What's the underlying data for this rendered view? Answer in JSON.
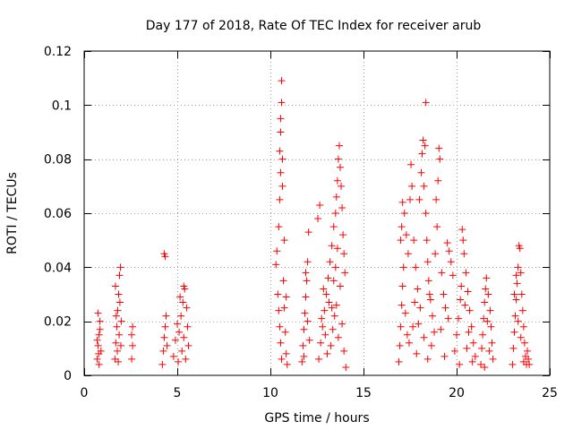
{
  "chart_data": {
    "type": "scatter",
    "title": "Day 177 of 2018, Rate Of TEC Index for receiver arub",
    "xlabel": "GPS time / hours",
    "ylabel": "ROTI / TECUs",
    "xlim": [
      0,
      25
    ],
    "ylim": [
      0,
      0.12
    ],
    "xticks": [
      0,
      5,
      10,
      15,
      20,
      25
    ],
    "xtick_labels": [
      "0",
      "5",
      "10",
      "15",
      "20",
      "25"
    ],
    "yticks": [
      0,
      0.02,
      0.04,
      0.06,
      0.08,
      0.1,
      0.12
    ],
    "ytick_labels": [
      "0",
      "0.02",
      "0.04",
      "0.06",
      "0.08",
      "0.1",
      "0.12"
    ],
    "grid": true,
    "marker": "+",
    "color": "#ff0000",
    "series": [
      {
        "name": "ROTI",
        "points": [
          [
            0.7,
            0.006
          ],
          [
            0.75,
            0.011
          ],
          [
            0.8,
            0.015
          ],
          [
            0.85,
            0.02
          ],
          [
            0.75,
            0.023
          ],
          [
            0.9,
            0.009
          ],
          [
            0.8,
            0.004
          ],
          [
            0.7,
            0.013
          ],
          [
            0.85,
            0.017
          ],
          [
            0.78,
            0.008
          ],
          [
            1.65,
            0.006
          ],
          [
            1.7,
            0.012
          ],
          [
            1.75,
            0.018
          ],
          [
            1.8,
            0.024
          ],
          [
            1.85,
            0.03
          ],
          [
            1.9,
            0.037
          ],
          [
            1.95,
            0.04
          ],
          [
            1.72,
            0.022
          ],
          [
            1.88,
            0.015
          ],
          [
            1.78,
            0.009
          ],
          [
            1.92,
            0.027
          ],
          [
            2.0,
            0.02
          ],
          [
            1.68,
            0.033
          ],
          [
            1.83,
            0.005
          ],
          [
            1.97,
            0.011
          ],
          [
            2.55,
            0.006
          ],
          [
            2.6,
            0.011
          ],
          [
            2.55,
            0.015
          ],
          [
            2.6,
            0.018
          ],
          [
            4.2,
            0.004
          ],
          [
            4.25,
            0.009
          ],
          [
            4.3,
            0.014
          ],
          [
            4.35,
            0.018
          ],
          [
            4.4,
            0.022
          ],
          [
            4.3,
            0.045
          ],
          [
            4.35,
            0.044
          ],
          [
            4.45,
            0.011
          ],
          [
            4.8,
            0.007
          ],
          [
            4.9,
            0.013
          ],
          [
            5.0,
            0.019
          ],
          [
            5.1,
            0.016
          ],
          [
            5.2,
            0.022
          ],
          [
            5.3,
            0.027
          ],
          [
            5.35,
            0.033
          ],
          [
            5.4,
            0.032
          ],
          [
            5.5,
            0.025
          ],
          [
            5.55,
            0.018
          ],
          [
            5.6,
            0.011
          ],
          [
            5.45,
            0.006
          ],
          [
            5.25,
            0.009
          ],
          [
            5.15,
            0.029
          ],
          [
            5.05,
            0.005
          ],
          [
            5.35,
            0.014
          ],
          [
            10.3,
            0.041
          ],
          [
            10.35,
            0.046
          ],
          [
            10.4,
            0.03
          ],
          [
            10.45,
            0.024
          ],
          [
            10.5,
            0.018
          ],
          [
            10.55,
            0.012
          ],
          [
            10.6,
            0.006
          ],
          [
            10.45,
            0.055
          ],
          [
            10.5,
            0.065
          ],
          [
            10.55,
            0.075
          ],
          [
            10.5,
            0.083
          ],
          [
            10.55,
            0.09
          ],
          [
            10.55,
            0.095
          ],
          [
            10.6,
            0.101
          ],
          [
            10.6,
            0.109
          ],
          [
            10.65,
            0.08
          ],
          [
            10.65,
            0.07
          ],
          [
            10.7,
            0.035
          ],
          [
            10.75,
            0.025
          ],
          [
            10.8,
            0.016
          ],
          [
            10.85,
            0.008
          ],
          [
            10.9,
            0.004
          ],
          [
            10.75,
            0.05
          ],
          [
            10.85,
            0.029
          ],
          [
            11.7,
            0.005
          ],
          [
            11.75,
            0.011
          ],
          [
            11.8,
            0.017
          ],
          [
            11.85,
            0.023
          ],
          [
            11.9,
            0.029
          ],
          [
            11.95,
            0.035
          ],
          [
            12.0,
            0.042
          ],
          [
            12.05,
            0.053
          ],
          [
            11.9,
            0.038
          ],
          [
            12.0,
            0.02
          ],
          [
            12.1,
            0.013
          ],
          [
            11.8,
            0.007
          ],
          [
            12.6,
            0.006
          ],
          [
            12.7,
            0.012
          ],
          [
            12.8,
            0.018
          ],
          [
            12.9,
            0.024
          ],
          [
            13.0,
            0.03
          ],
          [
            13.1,
            0.036
          ],
          [
            13.2,
            0.042
          ],
          [
            13.3,
            0.048
          ],
          [
            13.4,
            0.055
          ],
          [
            13.5,
            0.06
          ],
          [
            13.55,
            0.066
          ],
          [
            13.6,
            0.072
          ],
          [
            13.65,
            0.08
          ],
          [
            13.7,
            0.085
          ],
          [
            13.75,
            0.077
          ],
          [
            13.8,
            0.07
          ],
          [
            13.85,
            0.062
          ],
          [
            13.9,
            0.052
          ],
          [
            13.95,
            0.045
          ],
          [
            14.0,
            0.038
          ],
          [
            13.45,
            0.022
          ],
          [
            13.35,
            0.017
          ],
          [
            13.25,
            0.011
          ],
          [
            13.15,
            0.027
          ],
          [
            13.05,
            0.008
          ],
          [
            12.95,
            0.015
          ],
          [
            12.85,
            0.032
          ],
          [
            12.75,
            0.021
          ],
          [
            12.65,
            0.063
          ],
          [
            12.55,
            0.058
          ],
          [
            13.55,
            0.026
          ],
          [
            13.65,
            0.014
          ],
          [
            13.75,
            0.033
          ],
          [
            13.85,
            0.019
          ],
          [
            13.95,
            0.009
          ],
          [
            14.05,
            0.003
          ],
          [
            13.5,
            0.04
          ],
          [
            13.6,
            0.047
          ],
          [
            13.4,
            0.035
          ],
          [
            13.3,
            0.025
          ],
          [
            16.9,
            0.005
          ],
          [
            16.95,
            0.011
          ],
          [
            17.0,
            0.018
          ],
          [
            17.05,
            0.026
          ],
          [
            17.1,
            0.033
          ],
          [
            17.15,
            0.04
          ],
          [
            17.0,
            0.05
          ],
          [
            17.05,
            0.055
          ],
          [
            17.1,
            0.064
          ],
          [
            17.2,
            0.06
          ],
          [
            17.3,
            0.052
          ],
          [
            17.4,
            0.045
          ],
          [
            17.5,
            0.065
          ],
          [
            17.55,
            0.078
          ],
          [
            17.6,
            0.07
          ],
          [
            17.7,
            0.05
          ],
          [
            17.8,
            0.04
          ],
          [
            17.9,
            0.032
          ],
          [
            18.0,
            0.065
          ],
          [
            18.1,
            0.075
          ],
          [
            18.15,
            0.082
          ],
          [
            18.2,
            0.087
          ],
          [
            18.3,
            0.085
          ],
          [
            18.25,
            0.07
          ],
          [
            18.35,
            0.06
          ],
          [
            18.4,
            0.05
          ],
          [
            18.45,
            0.042
          ],
          [
            18.35,
            0.101
          ],
          [
            18.5,
            0.035
          ],
          [
            18.6,
            0.028
          ],
          [
            18.7,
            0.022
          ],
          [
            18.8,
            0.016
          ],
          [
            18.9,
            0.065
          ],
          [
            19.0,
            0.072
          ],
          [
            19.05,
            0.084
          ],
          [
            19.1,
            0.08
          ],
          [
            18.95,
            0.055
          ],
          [
            18.85,
            0.045
          ],
          [
            19.2,
            0.038
          ],
          [
            19.3,
            0.03
          ],
          [
            19.4,
            0.025
          ],
          [
            19.5,
            0.049
          ],
          [
            19.6,
            0.046
          ],
          [
            19.7,
            0.042
          ],
          [
            19.8,
            0.037
          ],
          [
            17.45,
            0.012
          ],
          [
            17.65,
            0.018
          ],
          [
            17.85,
            0.008
          ],
          [
            18.05,
            0.025
          ],
          [
            18.25,
            0.014
          ],
          [
            18.45,
            0.006
          ],
          [
            18.65,
            0.011
          ],
          [
            19.15,
            0.017
          ],
          [
            19.35,
            0.007
          ],
          [
            19.55,
            0.021
          ],
          [
            17.25,
            0.023
          ],
          [
            17.35,
            0.015
          ],
          [
            17.75,
            0.027
          ],
          [
            17.95,
            0.019
          ],
          [
            18.55,
            0.03
          ],
          [
            19.9,
            0.009
          ],
          [
            20.0,
            0.015
          ],
          [
            20.1,
            0.021
          ],
          [
            20.2,
            0.028
          ],
          [
            20.3,
            0.054
          ],
          [
            20.35,
            0.05
          ],
          [
            20.4,
            0.045
          ],
          [
            20.5,
            0.038
          ],
          [
            20.6,
            0.031
          ],
          [
            20.7,
            0.024
          ],
          [
            20.8,
            0.018
          ],
          [
            20.9,
            0.012
          ],
          [
            21.0,
            0.007
          ],
          [
            20.15,
            0.004
          ],
          [
            20.45,
            0.026
          ],
          [
            20.65,
            0.016
          ],
          [
            20.85,
            0.005
          ],
          [
            20.25,
            0.033
          ],
          [
            20.55,
            0.01
          ],
          [
            21.3,
            0.004
          ],
          [
            21.35,
            0.01
          ],
          [
            21.4,
            0.015
          ],
          [
            21.45,
            0.021
          ],
          [
            21.5,
            0.027
          ],
          [
            21.55,
            0.032
          ],
          [
            21.6,
            0.036
          ],
          [
            21.7,
            0.03
          ],
          [
            21.8,
            0.024
          ],
          [
            21.85,
            0.018
          ],
          [
            21.9,
            0.012
          ],
          [
            21.95,
            0.006
          ],
          [
            21.65,
            0.02
          ],
          [
            21.75,
            0.009
          ],
          [
            21.5,
            0.003
          ],
          [
            23.0,
            0.004
          ],
          [
            23.05,
            0.01
          ],
          [
            23.1,
            0.016
          ],
          [
            23.15,
            0.022
          ],
          [
            23.2,
            0.028
          ],
          [
            23.25,
            0.034
          ],
          [
            23.3,
            0.04
          ],
          [
            23.35,
            0.048
          ],
          [
            23.4,
            0.047
          ],
          [
            23.45,
            0.038
          ],
          [
            23.5,
            0.03
          ],
          [
            23.55,
            0.024
          ],
          [
            23.6,
            0.018
          ],
          [
            23.65,
            0.012
          ],
          [
            23.7,
            0.007
          ],
          [
            23.75,
            0.004
          ],
          [
            23.8,
            0.009
          ],
          [
            23.85,
            0.006
          ],
          [
            23.9,
            0.004
          ],
          [
            23.2,
            0.037
          ],
          [
            23.45,
            0.014
          ],
          [
            23.6,
            0.005
          ],
          [
            23.3,
            0.02
          ],
          [
            23.1,
            0.03
          ]
        ]
      }
    ]
  }
}
